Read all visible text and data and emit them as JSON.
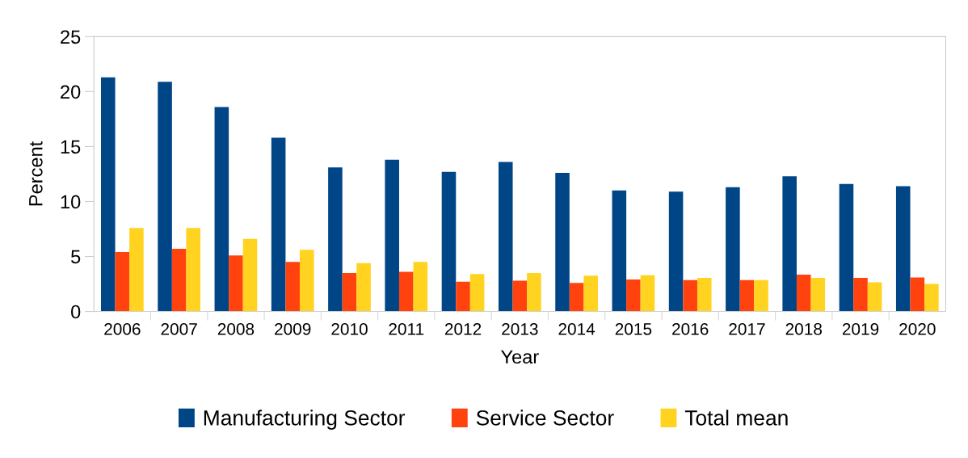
{
  "chart_data": {
    "type": "bar",
    "xlabel": "Year",
    "ylabel": "Percent",
    "categories": [
      "2006",
      "2007",
      "2008",
      "2009",
      "2010",
      "2011",
      "2012",
      "2013",
      "2014",
      "2015",
      "2016",
      "2017",
      "2018",
      "2019",
      "2020"
    ],
    "series": [
      {
        "name": "Manufacturing Sector",
        "color": "#004586",
        "values": [
          21.3,
          20.9,
          18.6,
          15.8,
          13.1,
          13.8,
          12.7,
          13.6,
          12.6,
          11.0,
          10.9,
          11.3,
          12.3,
          11.6,
          11.4
        ]
      },
      {
        "name": "Service Sector",
        "color": "#ff420e",
        "values": [
          5.4,
          5.7,
          5.1,
          4.5,
          3.5,
          3.6,
          2.7,
          2.8,
          2.6,
          2.9,
          2.85,
          2.85,
          3.35,
          3.05,
          3.1
        ]
      },
      {
        "name": "Total mean",
        "color": "#ffd320",
        "values": [
          7.6,
          7.6,
          6.6,
          5.6,
          4.4,
          4.5,
          3.4,
          3.5,
          3.25,
          3.3,
          3.05,
          2.85,
          3.05,
          2.65,
          2.5
        ]
      }
    ],
    "ylim": [
      0,
      25
    ],
    "yticks": [
      0,
      5,
      10,
      15,
      20,
      25
    ],
    "grid": false,
    "legend": "bottom"
  }
}
